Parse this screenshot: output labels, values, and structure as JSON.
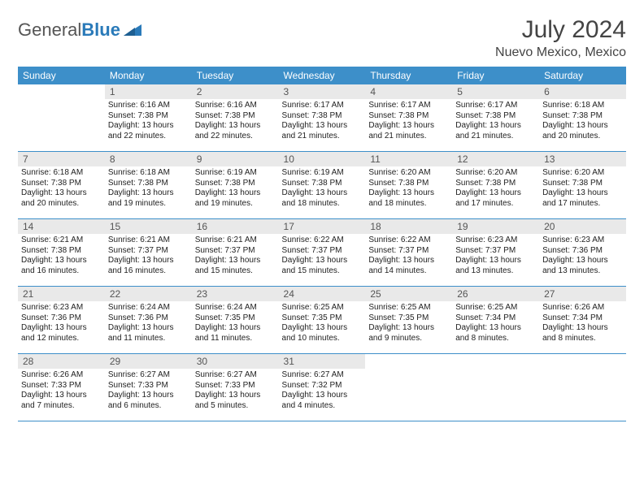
{
  "brand": {
    "part1": "General",
    "part2": "Blue"
  },
  "title": "July 2024",
  "location": "Nuevo Mexico, Mexico",
  "colors": {
    "header_bg": "#3d8fc9",
    "header_text": "#ffffff",
    "daynum_bg": "#e9e9e9",
    "border": "#3d8fc9",
    "logo_blue": "#2a7ab9"
  },
  "weekdays": [
    "Sunday",
    "Monday",
    "Tuesday",
    "Wednesday",
    "Thursday",
    "Friday",
    "Saturday"
  ],
  "start_offset": 1,
  "days": [
    {
      "n": 1,
      "sr": "6:16 AM",
      "ss": "7:38 PM",
      "dl": "13 hours and 22 minutes."
    },
    {
      "n": 2,
      "sr": "6:16 AM",
      "ss": "7:38 PM",
      "dl": "13 hours and 22 minutes."
    },
    {
      "n": 3,
      "sr": "6:17 AM",
      "ss": "7:38 PM",
      "dl": "13 hours and 21 minutes."
    },
    {
      "n": 4,
      "sr": "6:17 AM",
      "ss": "7:38 PM",
      "dl": "13 hours and 21 minutes."
    },
    {
      "n": 5,
      "sr": "6:17 AM",
      "ss": "7:38 PM",
      "dl": "13 hours and 21 minutes."
    },
    {
      "n": 6,
      "sr": "6:18 AM",
      "ss": "7:38 PM",
      "dl": "13 hours and 20 minutes."
    },
    {
      "n": 7,
      "sr": "6:18 AM",
      "ss": "7:38 PM",
      "dl": "13 hours and 20 minutes."
    },
    {
      "n": 8,
      "sr": "6:18 AM",
      "ss": "7:38 PM",
      "dl": "13 hours and 19 minutes."
    },
    {
      "n": 9,
      "sr": "6:19 AM",
      "ss": "7:38 PM",
      "dl": "13 hours and 19 minutes."
    },
    {
      "n": 10,
      "sr": "6:19 AM",
      "ss": "7:38 PM",
      "dl": "13 hours and 18 minutes."
    },
    {
      "n": 11,
      "sr": "6:20 AM",
      "ss": "7:38 PM",
      "dl": "13 hours and 18 minutes."
    },
    {
      "n": 12,
      "sr": "6:20 AM",
      "ss": "7:38 PM",
      "dl": "13 hours and 17 minutes."
    },
    {
      "n": 13,
      "sr": "6:20 AM",
      "ss": "7:38 PM",
      "dl": "13 hours and 17 minutes."
    },
    {
      "n": 14,
      "sr": "6:21 AM",
      "ss": "7:38 PM",
      "dl": "13 hours and 16 minutes."
    },
    {
      "n": 15,
      "sr": "6:21 AM",
      "ss": "7:37 PM",
      "dl": "13 hours and 16 minutes."
    },
    {
      "n": 16,
      "sr": "6:21 AM",
      "ss": "7:37 PM",
      "dl": "13 hours and 15 minutes."
    },
    {
      "n": 17,
      "sr": "6:22 AM",
      "ss": "7:37 PM",
      "dl": "13 hours and 15 minutes."
    },
    {
      "n": 18,
      "sr": "6:22 AM",
      "ss": "7:37 PM",
      "dl": "13 hours and 14 minutes."
    },
    {
      "n": 19,
      "sr": "6:23 AM",
      "ss": "7:37 PM",
      "dl": "13 hours and 13 minutes."
    },
    {
      "n": 20,
      "sr": "6:23 AM",
      "ss": "7:36 PM",
      "dl": "13 hours and 13 minutes."
    },
    {
      "n": 21,
      "sr": "6:23 AM",
      "ss": "7:36 PM",
      "dl": "13 hours and 12 minutes."
    },
    {
      "n": 22,
      "sr": "6:24 AM",
      "ss": "7:36 PM",
      "dl": "13 hours and 11 minutes."
    },
    {
      "n": 23,
      "sr": "6:24 AM",
      "ss": "7:35 PM",
      "dl": "13 hours and 11 minutes."
    },
    {
      "n": 24,
      "sr": "6:25 AM",
      "ss": "7:35 PM",
      "dl": "13 hours and 10 minutes."
    },
    {
      "n": 25,
      "sr": "6:25 AM",
      "ss": "7:35 PM",
      "dl": "13 hours and 9 minutes."
    },
    {
      "n": 26,
      "sr": "6:25 AM",
      "ss": "7:34 PM",
      "dl": "13 hours and 8 minutes."
    },
    {
      "n": 27,
      "sr": "6:26 AM",
      "ss": "7:34 PM",
      "dl": "13 hours and 8 minutes."
    },
    {
      "n": 28,
      "sr": "6:26 AM",
      "ss": "7:33 PM",
      "dl": "13 hours and 7 minutes."
    },
    {
      "n": 29,
      "sr": "6:27 AM",
      "ss": "7:33 PM",
      "dl": "13 hours and 6 minutes."
    },
    {
      "n": 30,
      "sr": "6:27 AM",
      "ss": "7:33 PM",
      "dl": "13 hours and 5 minutes."
    },
    {
      "n": 31,
      "sr": "6:27 AM",
      "ss": "7:32 PM",
      "dl": "13 hours and 4 minutes."
    }
  ],
  "labels": {
    "sunrise": "Sunrise:",
    "sunset": "Sunset:",
    "daylight": "Daylight:"
  }
}
